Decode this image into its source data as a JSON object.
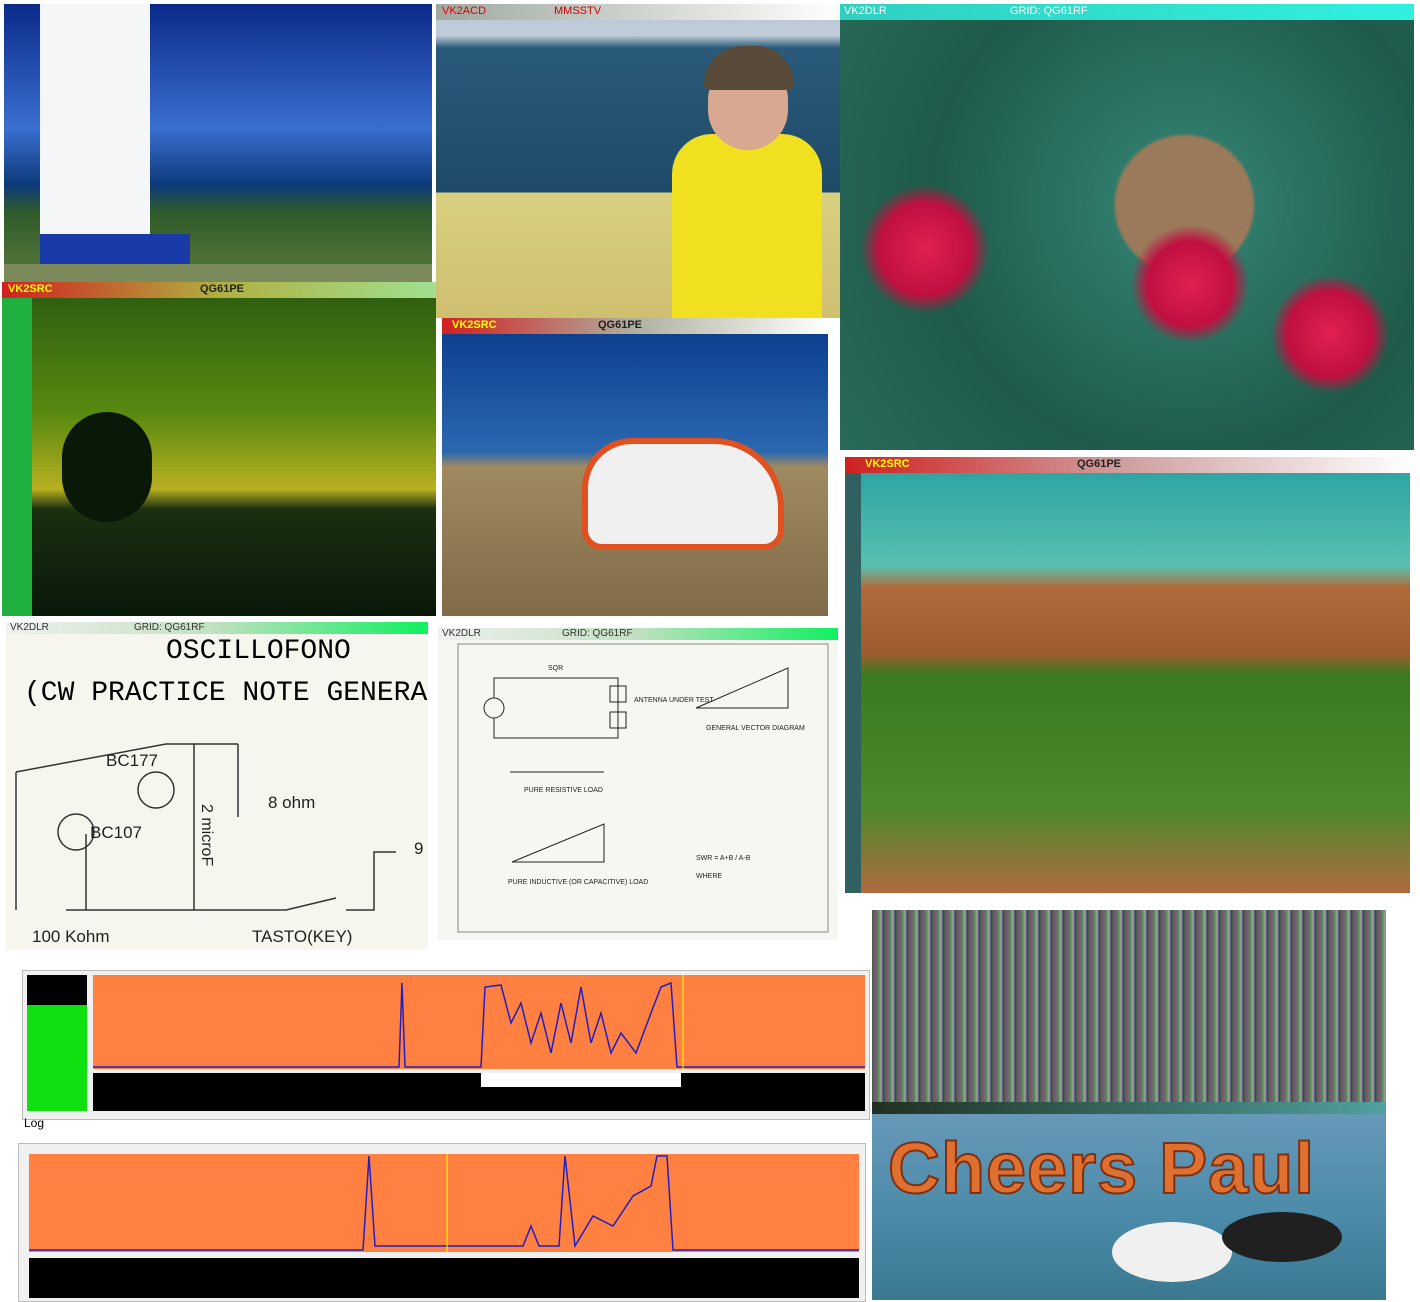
{
  "boat": {
    "callsign": "VK2ACD",
    "mode": "MMSSTV"
  },
  "possum": {
    "callsign": "VK2DLR",
    "grid": "GRID: QG61RF"
  },
  "sunset": {
    "callsign": "VK2SRC",
    "locator": "QG61PE"
  },
  "helicopter": {
    "callsign": "VK2SRC",
    "locator": "QG61PE"
  },
  "olgas": {
    "callsign": "VK2SRC",
    "locator": "QG61PE"
  },
  "oscillator": {
    "callsign": "VK2DLR",
    "grid": "GRID: QG61RF",
    "title": "OSCILLOFONO",
    "subtitle": "(CW PRACTICE NOTE GENERA",
    "labels": [
      "BC177",
      "BC107",
      "2 microF",
      "8 ohm",
      "100 Kohm",
      "TASTO(KEY)",
      "9"
    ]
  },
  "swr": {
    "callsign": "VK2DLR",
    "grid": "GRID: QG61RF",
    "labels": [
      "SQR",
      "ANTENNA UNDER TEST",
      "GENERAL VECTOR DIAGRAM",
      "PURE RESISTIVE LOAD",
      "PURE INDUCTIVE (OR CAPACITIVE) LOAD",
      "SWR = A+B / A-B",
      "WHERE"
    ]
  },
  "spectrum": {
    "log_label": "Log"
  },
  "pelicans": {
    "caption": "Cheers Paul"
  }
}
